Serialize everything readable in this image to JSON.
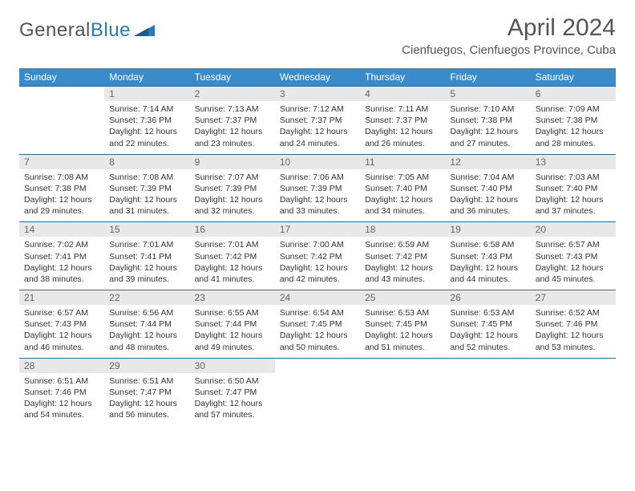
{
  "logo": {
    "part1": "General",
    "part2": "Blue"
  },
  "title": "April 2024",
  "location": "Cienfuegos, Cienfuegos Province, Cuba",
  "colors": {
    "header_bg": "#3a8bc9",
    "header_text": "#ffffff",
    "daynum_bg": "#e8e8e8",
    "daynum_text": "#666666",
    "body_text": "#333333",
    "title_text": "#555555",
    "row_top_border": "#2a6fa3",
    "logo_accent": "#2a7ab8"
  },
  "weekdays": [
    "Sunday",
    "Monday",
    "Tuesday",
    "Wednesday",
    "Thursday",
    "Friday",
    "Saturday"
  ],
  "weeks": [
    [
      null,
      {
        "d": "1",
        "sr": "7:14 AM",
        "ss": "7:36 PM",
        "dl": "12 hours and 22 minutes."
      },
      {
        "d": "2",
        "sr": "7:13 AM",
        "ss": "7:37 PM",
        "dl": "12 hours and 23 minutes."
      },
      {
        "d": "3",
        "sr": "7:12 AM",
        "ss": "7:37 PM",
        "dl": "12 hours and 24 minutes."
      },
      {
        "d": "4",
        "sr": "7:11 AM",
        "ss": "7:37 PM",
        "dl": "12 hours and 26 minutes."
      },
      {
        "d": "5",
        "sr": "7:10 AM",
        "ss": "7:38 PM",
        "dl": "12 hours and 27 minutes."
      },
      {
        "d": "6",
        "sr": "7:09 AM",
        "ss": "7:38 PM",
        "dl": "12 hours and 28 minutes."
      }
    ],
    [
      {
        "d": "7",
        "sr": "7:08 AM",
        "ss": "7:38 PM",
        "dl": "12 hours and 29 minutes."
      },
      {
        "d": "8",
        "sr": "7:08 AM",
        "ss": "7:39 PM",
        "dl": "12 hours and 31 minutes."
      },
      {
        "d": "9",
        "sr": "7:07 AM",
        "ss": "7:39 PM",
        "dl": "12 hours and 32 minutes."
      },
      {
        "d": "10",
        "sr": "7:06 AM",
        "ss": "7:39 PM",
        "dl": "12 hours and 33 minutes."
      },
      {
        "d": "11",
        "sr": "7:05 AM",
        "ss": "7:40 PM",
        "dl": "12 hours and 34 minutes."
      },
      {
        "d": "12",
        "sr": "7:04 AM",
        "ss": "7:40 PM",
        "dl": "12 hours and 36 minutes."
      },
      {
        "d": "13",
        "sr": "7:03 AM",
        "ss": "7:40 PM",
        "dl": "12 hours and 37 minutes."
      }
    ],
    [
      {
        "d": "14",
        "sr": "7:02 AM",
        "ss": "7:41 PM",
        "dl": "12 hours and 38 minutes."
      },
      {
        "d": "15",
        "sr": "7:01 AM",
        "ss": "7:41 PM",
        "dl": "12 hours and 39 minutes."
      },
      {
        "d": "16",
        "sr": "7:01 AM",
        "ss": "7:42 PM",
        "dl": "12 hours and 41 minutes."
      },
      {
        "d": "17",
        "sr": "7:00 AM",
        "ss": "7:42 PM",
        "dl": "12 hours and 42 minutes."
      },
      {
        "d": "18",
        "sr": "6:59 AM",
        "ss": "7:42 PM",
        "dl": "12 hours and 43 minutes."
      },
      {
        "d": "19",
        "sr": "6:58 AM",
        "ss": "7:43 PM",
        "dl": "12 hours and 44 minutes."
      },
      {
        "d": "20",
        "sr": "6:57 AM",
        "ss": "7:43 PM",
        "dl": "12 hours and 45 minutes."
      }
    ],
    [
      {
        "d": "21",
        "sr": "6:57 AM",
        "ss": "7:43 PM",
        "dl": "12 hours and 46 minutes."
      },
      {
        "d": "22",
        "sr": "6:56 AM",
        "ss": "7:44 PM",
        "dl": "12 hours and 48 minutes."
      },
      {
        "d": "23",
        "sr": "6:55 AM",
        "ss": "7:44 PM",
        "dl": "12 hours and 49 minutes."
      },
      {
        "d": "24",
        "sr": "6:54 AM",
        "ss": "7:45 PM",
        "dl": "12 hours and 50 minutes."
      },
      {
        "d": "25",
        "sr": "6:53 AM",
        "ss": "7:45 PM",
        "dl": "12 hours and 51 minutes."
      },
      {
        "d": "26",
        "sr": "6:53 AM",
        "ss": "7:45 PM",
        "dl": "12 hours and 52 minutes."
      },
      {
        "d": "27",
        "sr": "6:52 AM",
        "ss": "7:46 PM",
        "dl": "12 hours and 53 minutes."
      }
    ],
    [
      {
        "d": "28",
        "sr": "6:51 AM",
        "ss": "7:46 PM",
        "dl": "12 hours and 54 minutes."
      },
      {
        "d": "29",
        "sr": "6:51 AM",
        "ss": "7:47 PM",
        "dl": "12 hours and 56 minutes."
      },
      {
        "d": "30",
        "sr": "6:50 AM",
        "ss": "7:47 PM",
        "dl": "12 hours and 57 minutes."
      },
      null,
      null,
      null,
      null
    ]
  ],
  "labels": {
    "sunrise": "Sunrise:",
    "sunset": "Sunset:",
    "daylight": "Daylight:"
  }
}
